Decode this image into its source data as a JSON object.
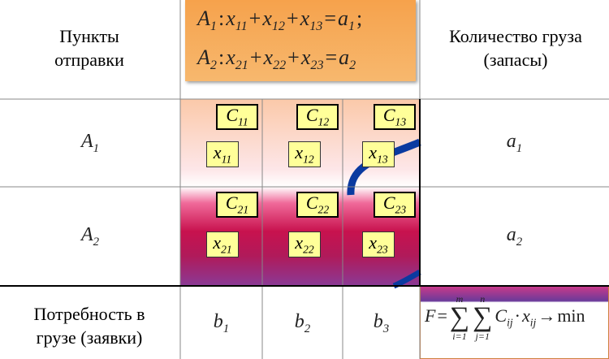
{
  "header": {
    "col1": "Пункты отправки",
    "col3": "Количество груза (запасы)",
    "constraints": [
      [
        {
          "t": "A",
          "sub": "1"
        },
        {
          "t": ":"
        },
        {
          "t": "x",
          "sub": "11"
        },
        {
          "t": "+"
        },
        {
          "t": "x",
          "sub": "12"
        },
        {
          "t": "+"
        },
        {
          "t": "x",
          "sub": "13"
        },
        {
          "t": "="
        },
        {
          "t": "a",
          "sub": "1"
        },
        {
          "t": ";"
        }
      ],
      [
        {
          "t": "A",
          "sub": "2"
        },
        {
          "t": ":"
        },
        {
          "t": "x",
          "sub": "21"
        },
        {
          "t": "+"
        },
        {
          "t": "x",
          "sub": "22"
        },
        {
          "t": "+"
        },
        {
          "t": "x",
          "sub": "23"
        },
        {
          "t": "="
        },
        {
          "t": "a",
          "sub": "2"
        }
      ]
    ]
  },
  "rows": [
    {
      "label": [
        {
          "t": "A",
          "sub": "1"
        }
      ],
      "costs": [
        [
          {
            "t": "C",
            "sub": "11"
          }
        ],
        [
          {
            "t": "C",
            "sub": "12"
          }
        ],
        [
          {
            "t": "C",
            "sub": "13"
          }
        ]
      ],
      "vars": [
        [
          {
            "t": "x",
            "sub": "11"
          }
        ],
        [
          {
            "t": "x",
            "sub": "12"
          }
        ],
        [
          {
            "t": "x",
            "sub": "13"
          }
        ]
      ],
      "supply": [
        {
          "t": "a",
          "sub": "1"
        }
      ]
    },
    {
      "label": [
        {
          "t": "A",
          "sub": "2"
        }
      ],
      "costs": [
        [
          {
            "t": "C",
            "sub": "21"
          }
        ],
        [
          {
            "t": "C",
            "sub": "22"
          }
        ],
        [
          {
            "t": "C",
            "sub": "23"
          }
        ]
      ],
      "vars": [
        [
          {
            "t": "x",
            "sub": "21"
          }
        ],
        [
          {
            "t": "x",
            "sub": "22"
          }
        ],
        [
          {
            "t": "x",
            "sub": "23"
          }
        ]
      ],
      "supply": [
        {
          "t": "a",
          "sub": "2"
        }
      ]
    }
  ],
  "footer": {
    "label": "Потребность в грузе (заявки)",
    "demands": [
      [
        {
          "t": "b",
          "sub": "1"
        }
      ],
      [
        {
          "t": "b",
          "sub": "2"
        }
      ],
      [
        {
          "t": "b",
          "sub": "3"
        }
      ]
    ],
    "objective": [
      {
        "t": "F"
      },
      {
        "t": "="
      },
      {
        "t": "∑",
        "over": "m",
        "under": "i=1"
      },
      {
        "t": "∑",
        "over": "n",
        "under": "j=1"
      },
      {
        "t": "C",
        "sub": "ij"
      },
      {
        "t": "·"
      },
      {
        "t": "x",
        "sub": "ij"
      },
      {
        "t": "→"
      },
      {
        "t": "min"
      }
    ]
  }
}
